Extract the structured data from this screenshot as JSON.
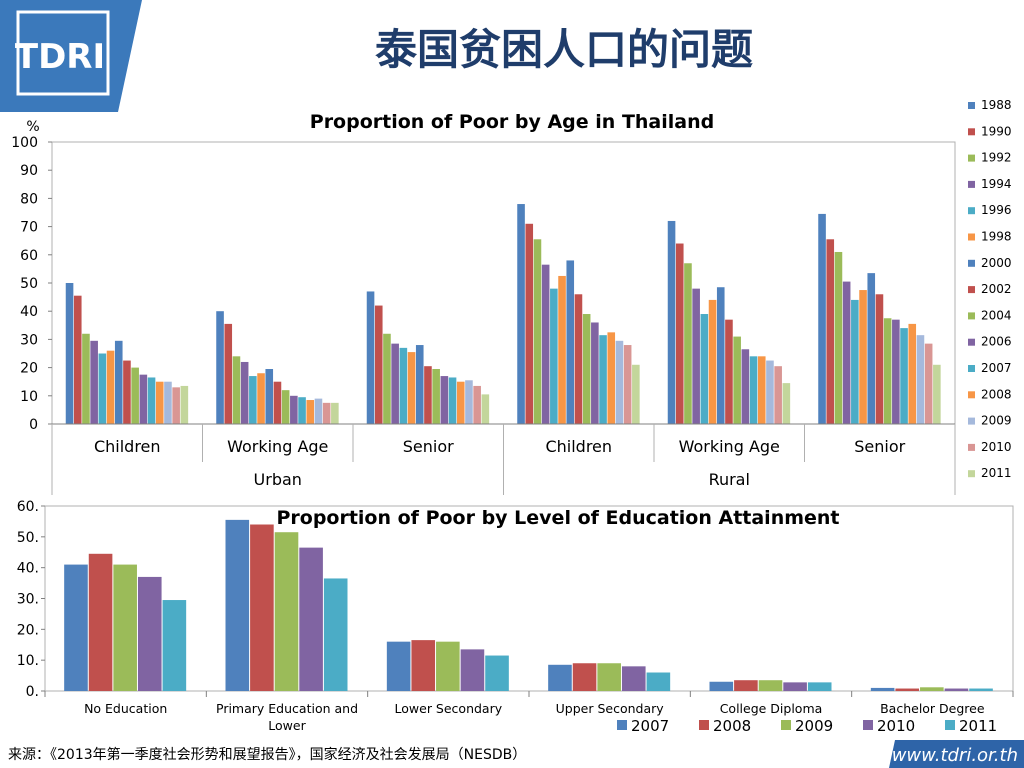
{
  "slide": {
    "title": "泰国贫困人口的问题",
    "source": "来源：《2013年第一季度社会形势和展望报告》，国家经济及社会发展局（NESDB）",
    "website": "www.tdri.or.th",
    "logo_text": "TDRI",
    "colors": {
      "logo_blue": "#3B79BB",
      "title_navy": "#1F3D6B",
      "footer_blue": "#2E64A8"
    }
  },
  "chart_data": [
    {
      "type": "bar",
      "title": "Proportion of Poor by Age in Thailand",
      "ylabel": "%",
      "ylim": [
        0,
        100
      ],
      "yticks": [
        0,
        10,
        20,
        30,
        40,
        50,
        60,
        70,
        80,
        90,
        100
      ],
      "grid": false,
      "legend_placement": "right",
      "groups": [
        "Urban",
        "Rural"
      ],
      "categories": [
        "Children",
        "Working Age",
        "Senior",
        "Children",
        "Working Age",
        "Senior"
      ],
      "series": [
        {
          "name": "1988",
          "color": "#4F81BD",
          "values": [
            50,
            40,
            47,
            78,
            72,
            74.5
          ]
        },
        {
          "name": "1990",
          "color": "#C0504D",
          "values": [
            45.5,
            35.5,
            42,
            71,
            64,
            65.5
          ]
        },
        {
          "name": "1992",
          "color": "#9BBB59",
          "values": [
            32,
            24,
            32,
            65.5,
            57,
            61
          ]
        },
        {
          "name": "1994",
          "color": "#8064A2",
          "values": [
            29.5,
            22,
            28.5,
            56.5,
            48,
            50.5
          ]
        },
        {
          "name": "1996",
          "color": "#4BACC6",
          "values": [
            25,
            17,
            27,
            48,
            39,
            44
          ]
        },
        {
          "name": "1998",
          "color": "#F79646",
          "values": [
            26,
            18,
            25.5,
            52.5,
            44,
            47.5
          ]
        },
        {
          "name": "2000",
          "color": "#4F81BD",
          "values": [
            29.5,
            19.5,
            28,
            58,
            48.5,
            53.5
          ]
        },
        {
          "name": "2002",
          "color": "#C0504D",
          "values": [
            22.5,
            15,
            20.5,
            46,
            37,
            46
          ]
        },
        {
          "name": "2004",
          "color": "#9BBB59",
          "values": [
            20,
            12,
            19.5,
            39,
            31,
            37.5
          ]
        },
        {
          "name": "2006",
          "color": "#8064A2",
          "values": [
            17.5,
            10,
            17,
            36,
            26.5,
            37
          ]
        },
        {
          "name": "2007",
          "color": "#4BACC6",
          "values": [
            16.5,
            9.5,
            16.5,
            31.5,
            24,
            34
          ]
        },
        {
          "name": "2008",
          "color": "#F79646",
          "values": [
            15,
            8.5,
            15,
            32.5,
            24,
            35.5
          ]
        },
        {
          "name": "2009",
          "color": "#A5B9DC",
          "values": [
            15,
            9,
            15.5,
            29.5,
            22.5,
            31.5
          ]
        },
        {
          "name": "2010",
          "color": "#D99694",
          "values": [
            13,
            7.5,
            13.5,
            28,
            20.5,
            28.5
          ]
        },
        {
          "name": "2011",
          "color": "#C3D69B",
          "values": [
            13.5,
            7.5,
            10.5,
            21,
            14.5,
            21
          ]
        }
      ]
    },
    {
      "type": "bar",
      "title": "Proportion of Poor by Level of Education Attainment",
      "ylim": [
        0,
        60
      ],
      "yticks": [
        "0.",
        "10.",
        "20.",
        "30.",
        "40.",
        "50.",
        "60."
      ],
      "grid": false,
      "legend_placement": "bottom-right",
      "categories": [
        "No Education",
        "Primary Education and Lower",
        "Lower Secondary",
        "Upper Secondary",
        "College Diploma",
        "Bachelor Degree"
      ],
      "series": [
        {
          "name": "2007",
          "color": "#4F81BD",
          "values": [
            41,
            55.5,
            16,
            8.5,
            3,
            1
          ]
        },
        {
          "name": "2008",
          "color": "#C0504D",
          "values": [
            44.5,
            54,
            16.5,
            9,
            3.5,
            0.8
          ]
        },
        {
          "name": "2009",
          "color": "#9BBB59",
          "values": [
            41,
            51.5,
            16,
            9,
            3.5,
            1.2
          ]
        },
        {
          "name": "2010",
          "color": "#8064A2",
          "values": [
            37,
            46.5,
            13.5,
            8,
            2.8,
            0.8
          ]
        },
        {
          "name": "2011",
          "color": "#4BACC6",
          "values": [
            29.5,
            36.5,
            11.5,
            6,
            2.8,
            0.8
          ]
        }
      ]
    }
  ]
}
